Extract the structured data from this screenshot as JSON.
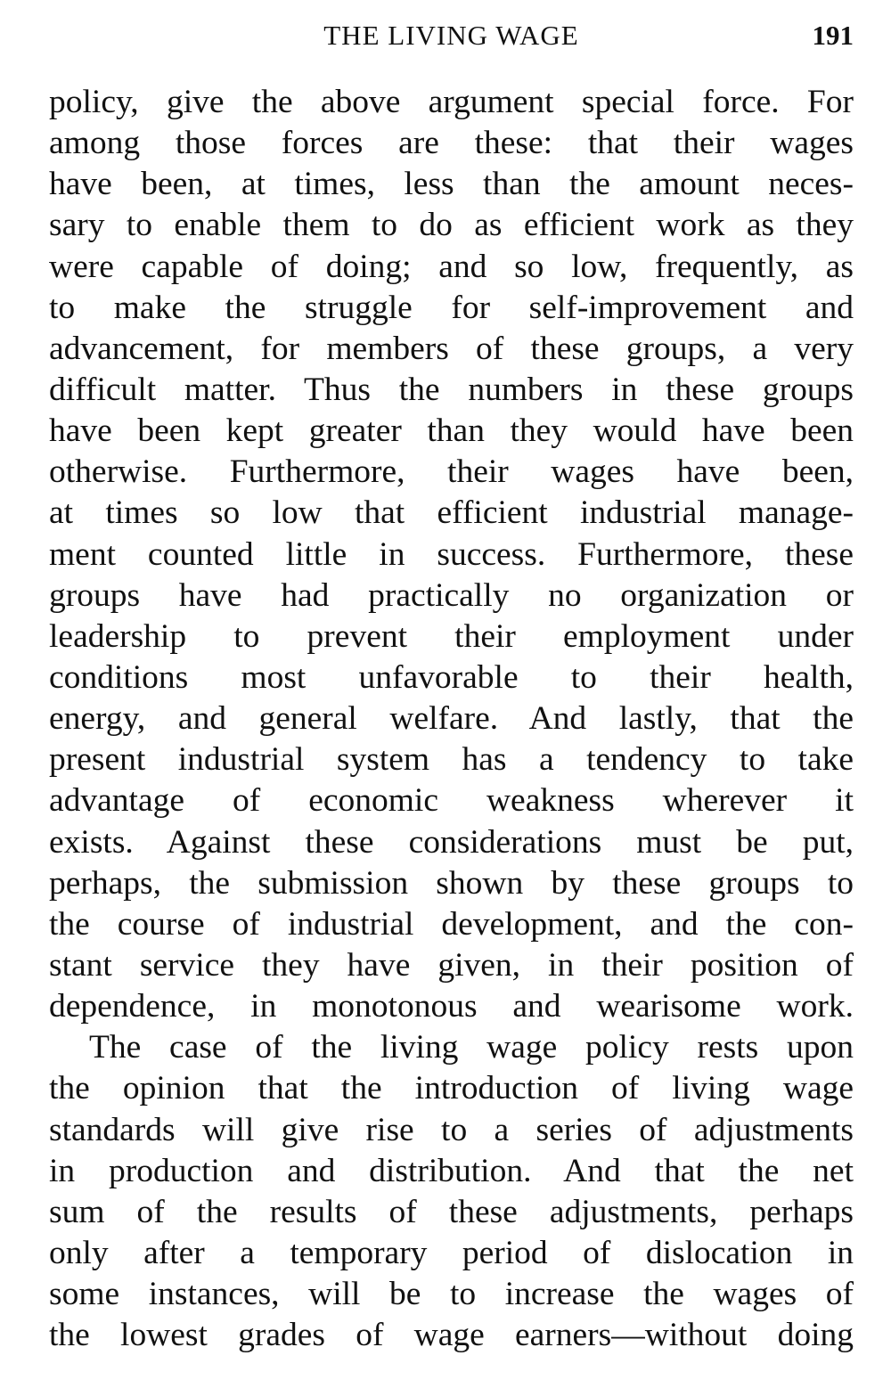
{
  "header": {
    "title": "THE LIVING WAGE",
    "page_number": "191"
  },
  "lines": [
    {
      "text": "policy, give the above argument special force. For",
      "indent": false
    },
    {
      "text": "among those forces are these: that their wages",
      "indent": false
    },
    {
      "text": "have been, at times, less than the amount neces-",
      "indent": false
    },
    {
      "text": "sary to enable them to do as efficient work as they",
      "indent": false
    },
    {
      "text": "were capable of doing; and so low, frequently, as",
      "indent": false
    },
    {
      "text": "to make the struggle for self-improvement and",
      "indent": false
    },
    {
      "text": "advancement, for members of these groups, a very",
      "indent": false
    },
    {
      "text": "difficult matter. Thus the numbers in these groups",
      "indent": false
    },
    {
      "text": "have been kept greater than they would have been",
      "indent": false
    },
    {
      "text": "otherwise. Furthermore, their wages have been,",
      "indent": false
    },
    {
      "text": "at times so low that efficient industrial manage-",
      "indent": false
    },
    {
      "text": "ment counted little in success. Furthermore, these",
      "indent": false
    },
    {
      "text": "groups have had practically no organization or",
      "indent": false
    },
    {
      "text": "leadership to prevent their employment under",
      "indent": false
    },
    {
      "text": "conditions most unfavorable to their health,",
      "indent": false
    },
    {
      "text": "energy, and general welfare. And lastly, that the",
      "indent": false
    },
    {
      "text": "present industrial system has a tendency to take",
      "indent": false
    },
    {
      "text": "advantage of economic weakness wherever it",
      "indent": false
    },
    {
      "text": "exists. Against these considerations must be put,",
      "indent": false
    },
    {
      "text": "perhaps, the submission shown by these groups to",
      "indent": false
    },
    {
      "text": "the course of industrial development, and the con-",
      "indent": false
    },
    {
      "text": "stant service they have given, in their position of",
      "indent": false
    },
    {
      "text": "dependence, in monotonous and wearisome work.",
      "indent": false
    },
    {
      "text": "The case of the living wage policy rests upon",
      "indent": true
    },
    {
      "text": "the opinion that the introduction of living wage",
      "indent": false
    },
    {
      "text": "standards will give rise to a series of adjustments",
      "indent": false
    },
    {
      "text": "in production and distribution. And that the net",
      "indent": false
    },
    {
      "text": "sum of the results of these adjustments, perhaps",
      "indent": false
    },
    {
      "text": "only after a temporary period of dislocation in",
      "indent": false
    },
    {
      "text": "some instances, will be to increase the wages of",
      "indent": false
    },
    {
      "text": "the lowest grades of wage earners—without doing",
      "indent": false
    }
  ]
}
